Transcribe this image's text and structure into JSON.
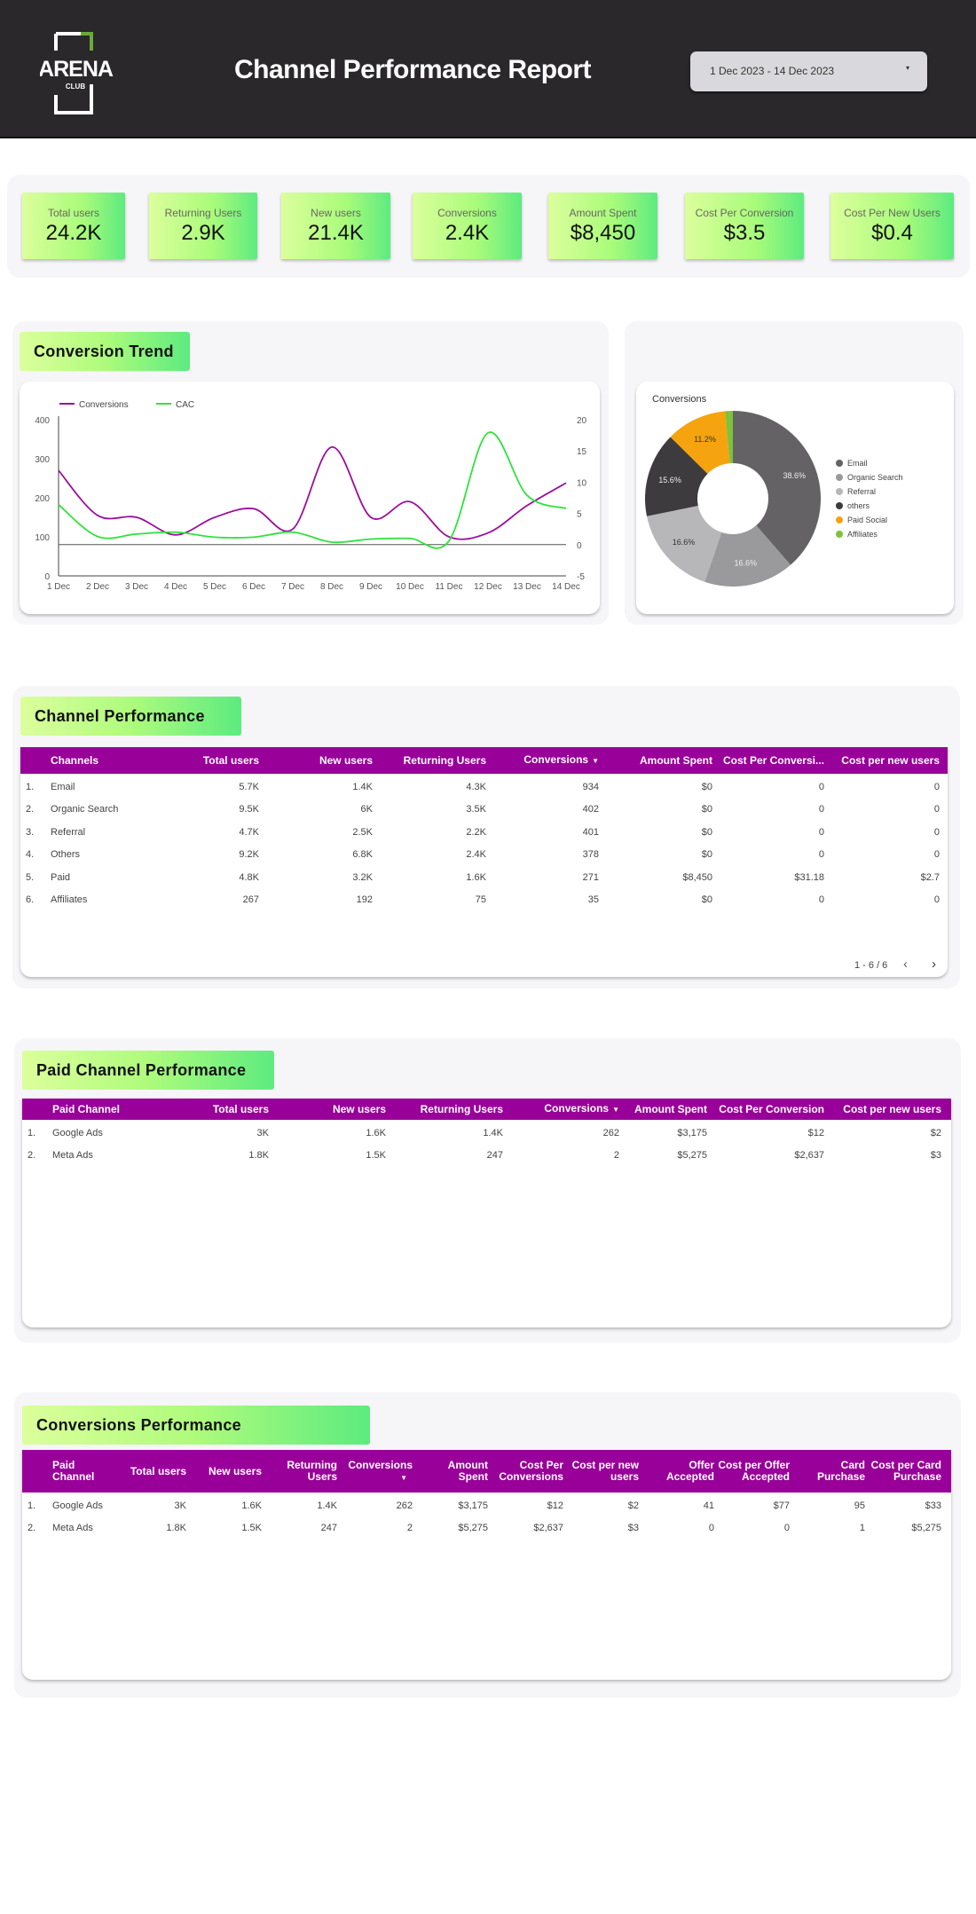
{
  "header": {
    "logo_text": "ARENA",
    "logo_sub": "CLUB",
    "title": "Channel Performance Report",
    "date_range": "1 Dec 2023 - 14 Dec 2023",
    "date_caret": "▾"
  },
  "kpis": [
    {
      "label": "Total users",
      "value": "24.2K"
    },
    {
      "label": "Returning Users",
      "value": "2.9K"
    },
    {
      "label": "New users",
      "value": "21.4K"
    },
    {
      "label": "Conversions",
      "value": "2.4K"
    },
    {
      "label": "Amount Spent",
      "value": "$8,450"
    },
    {
      "label": "Cost Per Conversion",
      "value": "$3.5"
    },
    {
      "label": "Cost Per New Users",
      "value": "$0.4"
    }
  ],
  "trend": {
    "title": "Conversion Trend"
  },
  "chart_data": [
    {
      "type": "line",
      "x": [
        "1 Dec",
        "2 Dec",
        "3 Dec",
        "4 Dec",
        "5 Dec",
        "6 Dec",
        "7 Dec",
        "8 Dec",
        "9 Dec",
        "10 Dec",
        "11 Dec",
        "12 Dec",
        "13 Dec",
        "14 Dec"
      ],
      "series": [
        {
          "name": "Conversions",
          "axis": "left",
          "color": "#9c109c",
          "values": [
            270,
            155,
            150,
            105,
            150,
            172,
            120,
            330,
            150,
            190,
            100,
            110,
            180,
            238
          ]
        },
        {
          "name": "CAC",
          "axis": "right",
          "color": "#2ee33a",
          "values": [
            6.4,
            1.3,
            1.7,
            2,
            1.2,
            1.2,
            2,
            0.4,
            0.9,
            1,
            0.6,
            17.9,
            7.9,
            5.8
          ]
        }
      ],
      "ylim_left": [
        0,
        400
      ],
      "yticks_left": [
        "0",
        "100",
        "200",
        "300",
        "400"
      ],
      "ylim_right": [
        -5,
        20
      ],
      "yticks_right": [
        "-5",
        "0",
        "5",
        "10",
        "15",
        "20"
      ],
      "legend": "top-left",
      "grid": false
    },
    {
      "type": "pie",
      "title": "Conversions",
      "donut": true,
      "slices": [
        {
          "label": "Email",
          "value": 38.6,
          "text": "38.6%",
          "color": "#646265"
        },
        {
          "label": "Organic Search",
          "value": 16.6,
          "text": "16.6%",
          "color": "#9a999b"
        },
        {
          "label": "Referral",
          "value": 16.6,
          "text": "16.6%",
          "color": "#b7b6b8"
        },
        {
          "label": "others",
          "value": 15.6,
          "text": "15.6%",
          "color": "#3d3b3e"
        },
        {
          "label": "Paid Social",
          "value": 11.2,
          "text": "11.2%",
          "color": "#f5a30e"
        },
        {
          "label": "Affiliates",
          "value": 1.4,
          "text": "",
          "color": "#7cc23b"
        }
      ],
      "legend": "right"
    }
  ],
  "channel": {
    "title": "Channel Performance",
    "columns": [
      "",
      "Channels",
      "Total users",
      "New users",
      "Returning Users",
      "Conversions",
      "Amount Spent",
      "Cost Per Conversi...",
      "Cost per new users"
    ],
    "sort_col": 5,
    "rows": [
      [
        "1.",
        "Email",
        "5.7K",
        "1.4K",
        "4.3K",
        "934",
        "$0",
        "0",
        "0"
      ],
      [
        "2.",
        "Organic Search",
        "9.5K",
        "6K",
        "3.5K",
        "402",
        "$0",
        "0",
        "0"
      ],
      [
        "3.",
        "Referral",
        "4.7K",
        "2.5K",
        "2.2K",
        "401",
        "$0",
        "0",
        "0"
      ],
      [
        "4.",
        "Others",
        "9.2K",
        "6.8K",
        "2.4K",
        "378",
        "$0",
        "0",
        "0"
      ],
      [
        "5.",
        "Paid",
        "4.8K",
        "3.2K",
        "1.6K",
        "271",
        "$8,450",
        "$31.18",
        "$2.7"
      ],
      [
        "6.",
        "Affiliates",
        "267",
        "192",
        "75",
        "35",
        "$0",
        "0",
        "0"
      ]
    ],
    "pagination": "1 - 6 / 6"
  },
  "paid": {
    "title": "Paid Channel Performance",
    "columns": [
      "",
      "Paid Channel",
      "Total users",
      "New users",
      "Returning Users",
      "Conversions",
      "Amount Spent",
      "Cost Per Conversion",
      "Cost per new users"
    ],
    "sort_col": 5,
    "rows": [
      [
        "1.",
        "Google Ads",
        "3K",
        "1.6K",
        "1.4K",
        "262",
        "$3,175",
        "$12",
        "$2"
      ],
      [
        "2.",
        "Meta Ads",
        "1.8K",
        "1.5K",
        "247",
        "2",
        "$5,275",
        "$2,637",
        "$3"
      ]
    ]
  },
  "conv": {
    "title": "Conversions Performance",
    "columns": [
      "",
      "Paid Channel",
      "Total users",
      "New users",
      "Returning Users",
      "Conversions",
      "Amount Spent",
      "Cost Per Conversions",
      "Cost per new users",
      "Offer Accepted",
      "Cost per Offer Accepted",
      "Card Purchase",
      "Cost per Card Purchase"
    ],
    "sort_col": 5,
    "rows": [
      [
        "1.",
        "Google Ads",
        "3K",
        "1.6K",
        "1.4K",
        "262",
        "$3,175",
        "$12",
        "$2",
        "41",
        "$77",
        "95",
        "$33"
      ],
      [
        "2.",
        "Meta Ads",
        "1.8K",
        "1.5K",
        "247",
        "2",
        "$5,275",
        "$2,637",
        "$3",
        "0",
        "0",
        "1",
        "$5,275"
      ]
    ]
  }
}
